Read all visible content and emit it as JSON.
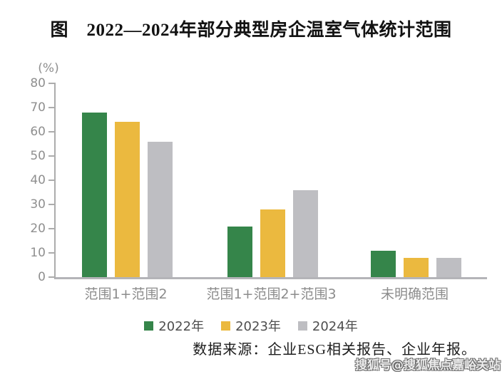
{
  "title": "图　2022—2024年部分典型房企温室气体统计范围",
  "chart_data": {
    "type": "bar",
    "title": "图　2022—2024年部分典型房企温室气体统计范围",
    "unit_label": "(%)",
    "categories": [
      "范围1+范围2",
      "范围1+范围2+范围3",
      "未明确范围"
    ],
    "series": [
      {
        "name": "2022年",
        "color": "#35854a",
        "values": [
          68,
          21,
          11
        ]
      },
      {
        "name": "2023年",
        "color": "#ebb93f",
        "values": [
          64,
          28,
          8
        ]
      },
      {
        "name": "2024年",
        "color": "#bebec2",
        "values": [
          56,
          36,
          8
        ]
      }
    ],
    "ylabel": "(%)",
    "xlabel": "",
    "ylim": [
      0,
      80
    ],
    "yticks": [
      0,
      10,
      20,
      30,
      40,
      50,
      60,
      70,
      80
    ],
    "grid": false,
    "legend_position": "bottom"
  },
  "source_note": "数据来源：企业ESG相关报告、企业年报。",
  "watermark": "搜狐号@搜狐焦点嘉峪关站",
  "colors": {
    "axis": "#acacac",
    "tick_label": "#8f8f8f",
    "category_label": "#8c8c8c",
    "legend_label": "#4e4e4e",
    "title": "#121212",
    "source": "#1c1c1c"
  }
}
